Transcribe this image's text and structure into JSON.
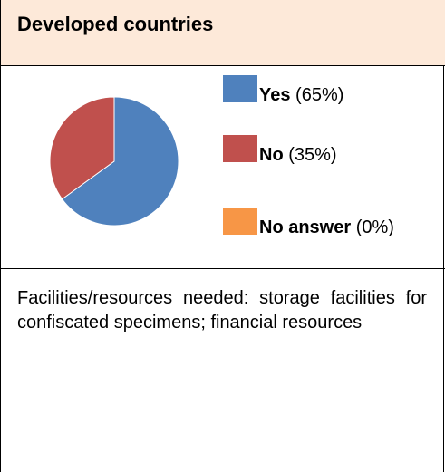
{
  "header": {
    "title": "Developed countries"
  },
  "chart_data": {
    "type": "pie",
    "slices": [
      {
        "label": "Yes",
        "percent_text": "(65%)",
        "value": 65,
        "color": "#4f81bd"
      },
      {
        "label": "No",
        "percent_text": "(35%)",
        "value": 35,
        "color": "#c0504d"
      },
      {
        "label": "No answer",
        "percent_text": "(0%)",
        "value": 0,
        "color": "#f79646"
      }
    ]
  },
  "comment": "Facilities/resources needed: storage facilities for confiscated specimens; financial resources"
}
